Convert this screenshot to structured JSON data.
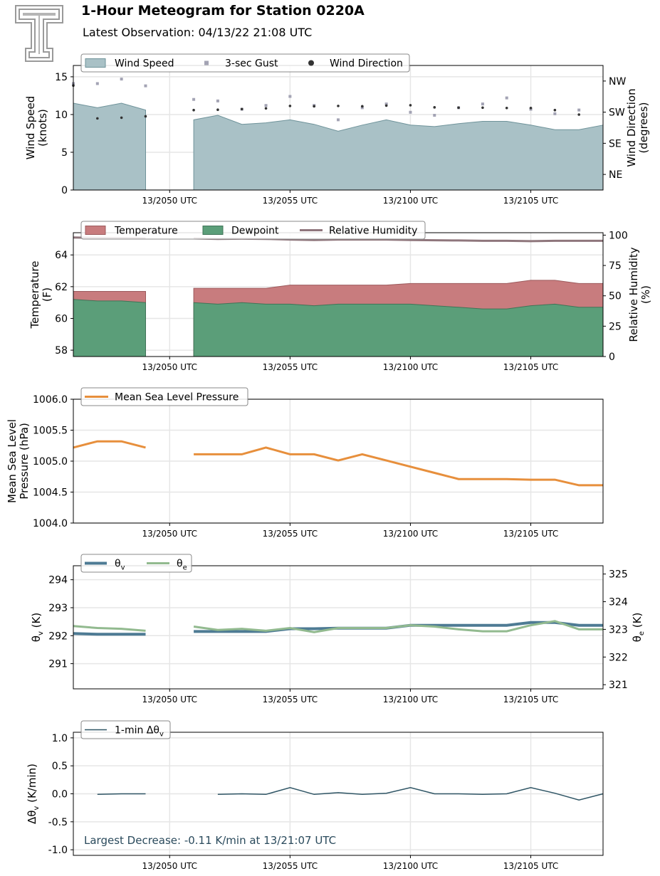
{
  "header": {
    "title": "1-Hour Meteogram for Station 0220A",
    "subtitle": "Latest Observation: 04/13/22 21:08 UTC"
  },
  "colors": {
    "wind_fill": "#a9c1c6",
    "wind_edge": "#6f939a",
    "gust": "#a3a3b4",
    "direction": "#333333",
    "temp": "#c87c7e",
    "dewpoint": "#5b9e79",
    "rh": "#8f767c",
    "mslp": "#e78f3c",
    "theta_v": "#4e7b94",
    "theta_e": "#92ba8f",
    "dtheta": "#2f5565",
    "annotation": "#2a4a5c"
  },
  "x_axis": {
    "ticks": [
      {
        "t": 50,
        "label": "13/2050 UTC"
      },
      {
        "t": 55,
        "label": "13/2055 UTC"
      },
      {
        "t": 60,
        "label": "13/2100 UTC"
      },
      {
        "t": 65,
        "label": "13/2105 UTC"
      }
    ],
    "xlim": [
      46,
      68
    ]
  },
  "chart_data": [
    {
      "type": "area",
      "ylabel": "Wind Speed\n(knots)",
      "ylabel_right": "Wind Direction\n(degrees)",
      "ylim": [
        0,
        16.5
      ],
      "yticks": [
        0,
        5,
        10,
        15
      ],
      "yticks_right": [
        {
          "v": 45,
          "label": "NE"
        },
        {
          "v": 135,
          "label": "SE"
        },
        {
          "v": 225,
          "label": "SW"
        },
        {
          "v": 315,
          "label": "NW"
        }
      ],
      "ylim_right": [
        0,
        360
      ],
      "legend": [
        "Wind Speed",
        "3-sec Gust",
        "Wind Direction"
      ],
      "series": [
        {
          "name": "Wind Speed",
          "segments": [
            {
              "x": [
                46,
                47,
                48,
                49
              ],
              "y": [
                11.5,
                10.9,
                11.5,
                10.6
              ]
            },
            {
              "x": [
                51,
                52,
                53,
                54,
                55,
                56,
                57,
                58,
                59,
                60,
                61,
                62,
                63,
                64,
                65,
                66,
                67,
                68
              ],
              "y": [
                9.3,
                9.9,
                8.7,
                8.9,
                9.3,
                8.7,
                7.8,
                8.6,
                9.3,
                8.6,
                8.4,
                8.8,
                9.1,
                9.1,
                8.6,
                8.0,
                8.0,
                8.6
              ]
            }
          ]
        },
        {
          "name": "3-sec Gust",
          "x": [
            46,
            47,
            48,
            49,
            51,
            52,
            53,
            54,
            55,
            56,
            57,
            58,
            59,
            60,
            61,
            62,
            63,
            64,
            65,
            66,
            67
          ],
          "y": [
            14.1,
            14.1,
            14.7,
            13.8,
            12.0,
            11.8,
            10.7,
            11.2,
            12.4,
            11.2,
            9.3,
            10.9,
            11.4,
            10.3,
            9.9,
            10.9,
            11.4,
            12.2,
            10.7,
            10.1,
            10.6
          ]
        },
        {
          "name": "Wind Direction",
          "x": [
            46,
            47,
            48,
            49,
            51,
            52,
            53,
            54,
            55,
            56,
            57,
            58,
            59,
            60,
            61,
            62,
            63,
            64,
            65,
            66,
            67
          ],
          "y": [
            302,
            207,
            209,
            213,
            231,
            232,
            234,
            236,
            243,
            242,
            243,
            242,
            244,
            245,
            239,
            238,
            238,
            237,
            237,
            231,
            218
          ]
        }
      ]
    },
    {
      "type": "area",
      "ylabel": "Temperature\n(F)",
      "ylabel_right": "Relative Humidity\n(%)",
      "ylim": [
        57.6,
        65.4
      ],
      "yticks": [
        58,
        60,
        62,
        64
      ],
      "ylim_right": [
        0,
        102
      ],
      "yticks_right": [
        0,
        25,
        50,
        75,
        100
      ],
      "legend": [
        "Temperature",
        "Dewpoint",
        "Relative Humidity"
      ],
      "series": [
        {
          "name": "Temperature",
          "segments": [
            {
              "x": [
                46,
                47,
                48,
                49
              ],
              "y": [
                61.7,
                61.7,
                61.7,
                61.7
              ]
            },
            {
              "x": [
                51,
                52,
                53,
                54,
                55,
                56,
                57,
                58,
                59,
                60,
                61,
                62,
                63,
                64,
                65,
                66,
                67,
                68
              ],
              "y": [
                61.9,
                61.9,
                61.9,
                61.9,
                62.1,
                62.1,
                62.1,
                62.1,
                62.1,
                62.2,
                62.2,
                62.2,
                62.2,
                62.2,
                62.4,
                62.4,
                62.2,
                62.2
              ]
            }
          ]
        },
        {
          "name": "Dewpoint",
          "segments": [
            {
              "x": [
                46,
                47,
                48,
                49
              ],
              "y": [
                61.2,
                61.1,
                61.1,
                61.0
              ]
            },
            {
              "x": [
                51,
                52,
                53,
                54,
                55,
                56,
                57,
                58,
                59,
                60,
                61,
                62,
                63,
                64,
                65,
                66,
                67,
                68
              ],
              "y": [
                61.0,
                60.9,
                61.0,
                60.9,
                60.9,
                60.8,
                60.9,
                60.9,
                60.9,
                60.9,
                60.8,
                60.7,
                60.6,
                60.6,
                60.8,
                60.9,
                60.7,
                60.7
              ]
            }
          ]
        },
        {
          "name": "Relative Humidity",
          "segments": [
            {
              "x": [
                46,
                47,
                48,
                49
              ],
              "y": [
                98.0,
                97.8,
                97.6,
                97.3
              ]
            },
            {
              "x": [
                51,
                52,
                53,
                54,
                55,
                56,
                57,
                58,
                59,
                60,
                61,
                62,
                63,
                64,
                65,
                66,
                67,
                68
              ],
              "y": [
                97.3,
                96.9,
                97.1,
                96.9,
                96.4,
                96.0,
                96.4,
                96.4,
                96.4,
                96.0,
                95.8,
                95.6,
                95.3,
                95.3,
                95.0,
                95.3,
                95.3,
                95.3
              ]
            }
          ]
        }
      ]
    },
    {
      "type": "line",
      "ylabel": "Mean Sea Level\nPressure (hPa)",
      "ylim": [
        1004.0,
        1006.0
      ],
      "yticks": [
        1004.0,
        1004.5,
        1005.0,
        1005.5,
        1006.0
      ],
      "legend": [
        "Mean Sea Level Pressure"
      ],
      "series": [
        {
          "name": "Mean Sea Level Pressure",
          "segments": [
            {
              "x": [
                46,
                47,
                48,
                49
              ],
              "y": [
                1005.22,
                1005.32,
                1005.32,
                1005.22
              ]
            },
            {
              "x": [
                51,
                52,
                53,
                54,
                55,
                56,
                57,
                58,
                59,
                60,
                61,
                62,
                63,
                64,
                65,
                66,
                67,
                68
              ],
              "y": [
                1005.11,
                1005.11,
                1005.11,
                1005.22,
                1005.11,
                1005.11,
                1005.01,
                1005.11,
                1005.01,
                1004.91,
                1004.81,
                1004.71,
                1004.71,
                1004.71,
                1004.7,
                1004.7,
                1004.61,
                1004.61
              ]
            }
          ]
        }
      ]
    },
    {
      "type": "line",
      "ylabel": "θv (K)",
      "ylabel_right": "θe (K)",
      "ylim": [
        290.1,
        294.5
      ],
      "yticks": [
        291,
        292,
        293,
        294
      ],
      "ylim_right": [
        320.85,
        325.3
      ],
      "yticks_right": [
        321,
        322,
        323,
        324,
        325
      ],
      "legend": [
        "θv",
        "θe"
      ],
      "series": [
        {
          "name": "θv",
          "segments": [
            {
              "x": [
                46,
                47,
                48,
                49
              ],
              "y": [
                292.08,
                292.05,
                292.05,
                292.05
              ]
            },
            {
              "x": [
                51,
                52,
                53,
                54,
                55,
                56,
                57,
                58,
                59,
                60,
                61,
                62,
                63,
                64,
                65,
                66,
                67,
                68
              ],
              "y": [
                292.15,
                292.15,
                292.15,
                292.15,
                292.25,
                292.25,
                292.27,
                292.27,
                292.27,
                292.37,
                292.37,
                292.37,
                292.37,
                292.37,
                292.47,
                292.47,
                292.37,
                292.37
              ]
            }
          ]
        },
        {
          "name": "θe",
          "segments": [
            {
              "x": [
                46,
                47,
                48,
                49
              ],
              "y": [
                323.12,
                323.05,
                323.02,
                322.95
              ]
            },
            {
              "x": [
                51,
                52,
                53,
                54,
                55,
                56,
                57,
                58,
                59,
                60,
                61,
                62,
                63,
                64,
                65,
                66,
                67,
                68
              ],
              "y": [
                323.1,
                322.98,
                323.02,
                322.95,
                323.05,
                322.9,
                323.05,
                323.05,
                323.05,
                323.15,
                323.1,
                323.0,
                322.93,
                322.93,
                323.15,
                323.3,
                323.0,
                323.0
              ]
            }
          ]
        }
      ]
    },
    {
      "type": "line",
      "ylabel": "Δθv (K/min)",
      "ylim": [
        -1.1,
        1.1
      ],
      "yticks": [
        -1.0,
        -0.5,
        0.0,
        0.5,
        1.0
      ],
      "legend": [
        "1-min Δθv"
      ],
      "annotation": "Largest Decrease: -0.11 K/min at 13/21:07 UTC",
      "series": [
        {
          "name": "1-min Δθv",
          "segments": [
            {
              "x": [
                47,
                48,
                49
              ],
              "y": [
                -0.01,
                0.0,
                0.0
              ]
            },
            {
              "x": [
                52,
                53,
                54,
                55,
                56,
                57,
                58,
                59,
                60,
                61,
                62,
                63,
                64,
                65,
                66,
                67,
                68
              ],
              "y": [
                -0.01,
                0.0,
                -0.01,
                0.11,
                -0.01,
                0.02,
                -0.01,
                0.01,
                0.11,
                0.0,
                0.0,
                -0.01,
                0.0,
                0.11,
                0.01,
                -0.11,
                0.0
              ]
            }
          ]
        }
      ]
    }
  ]
}
